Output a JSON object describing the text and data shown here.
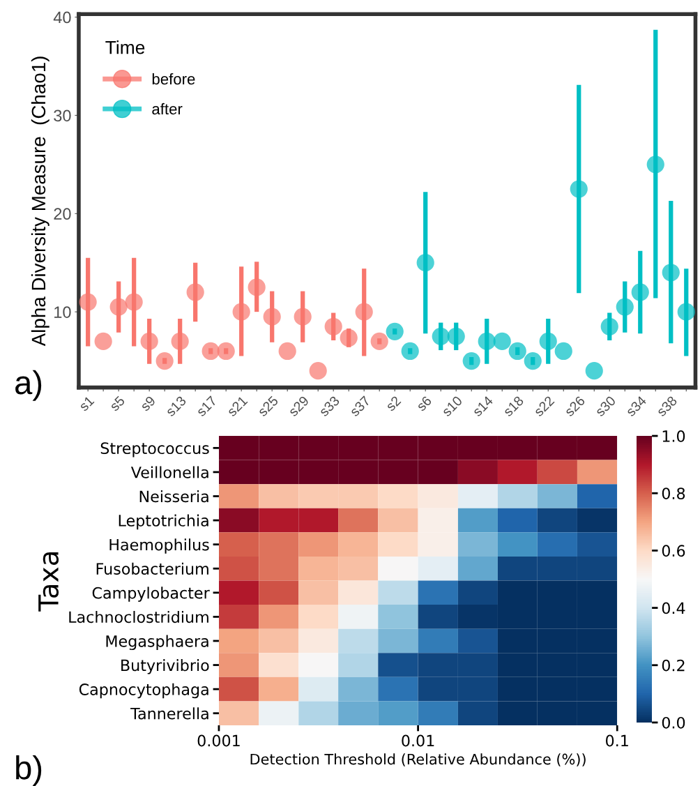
{
  "chart_data": [
    {
      "type": "scatter",
      "ylabel": "Alpha Diversity Measure  (Chao1)",
      "legend_title": "Time",
      "legend": "top left",
      "marker": "circle",
      "grid": false,
      "categories": [
        "s1",
        null,
        "s5",
        null,
        "s9",
        null,
        "s13",
        null,
        "s17",
        null,
        "s21",
        null,
        "s25",
        null,
        "s29",
        null,
        "s33",
        null,
        "s37",
        null,
        "s2",
        null,
        "s6",
        null,
        "s10",
        null,
        "s14",
        null,
        "s18",
        null,
        "s22",
        null,
        "s26",
        null,
        "s30",
        null,
        "s34",
        null,
        "s38",
        null
      ],
      "ylim": [
        2.3,
        40.3
      ],
      "yticks": [
        10,
        20,
        30,
        40
      ],
      "series": [
        {
          "name": "before",
          "color": "#f8766d",
          "values": [
            11,
            7,
            10.5,
            11,
            7,
            5,
            7,
            12,
            6,
            6,
            10,
            12.5,
            9.5,
            6,
            9.5,
            4,
            8.5,
            7.35,
            10,
            7,
            null,
            null,
            null,
            null,
            null,
            null,
            null,
            null,
            null,
            null,
            null,
            null,
            null,
            null,
            null,
            null,
            null,
            null,
            null,
            null
          ],
          "errors": [
            [
              6.5,
              15.5
            ],
            null,
            [
              7.9,
              13.1
            ],
            [
              6.5,
              15.5
            ],
            [
              4.7,
              9.3
            ],
            [
              4.7,
              5.3
            ],
            [
              4.7,
              9.3
            ],
            [
              9.0,
              15.0
            ],
            [
              5.7,
              6.3
            ],
            [
              5.7,
              6.3
            ],
            [
              5.5,
              14.6
            ],
            [
              10.0,
              15.1
            ],
            [
              6.9,
              12.1
            ],
            null,
            [
              6.9,
              12.1
            ],
            null,
            [
              7.1,
              9.9
            ],
            [
              6.4,
              8.3
            ],
            [
              5.5,
              14.4
            ],
            [
              6.7,
              7.3
            ],
            null,
            null,
            null,
            null,
            null,
            null,
            null,
            null,
            null,
            null,
            null,
            null,
            null,
            null,
            null,
            null,
            null,
            null,
            null,
            null
          ]
        },
        {
          "name": "after",
          "color": "#00bfc4",
          "values": [
            null,
            null,
            null,
            null,
            null,
            null,
            null,
            null,
            null,
            null,
            null,
            null,
            null,
            null,
            null,
            null,
            null,
            null,
            null,
            null,
            8,
            6,
            15,
            7.5,
            7.5,
            5,
            7,
            7,
            6,
            5,
            7,
            6,
            22.5,
            4,
            8.5,
            10.5,
            12,
            25,
            14,
            10
          ],
          "errors": [
            null,
            null,
            null,
            null,
            null,
            null,
            null,
            null,
            null,
            null,
            null,
            null,
            null,
            null,
            null,
            null,
            null,
            null,
            null,
            null,
            [
              7.7,
              8.3
            ],
            [
              5.7,
              6.3
            ],
            [
              7.8,
              22.2
            ],
            [
              6.1,
              8.9
            ],
            [
              6.1,
              8.9
            ],
            [
              4.6,
              5.4
            ],
            [
              4.7,
              9.3
            ],
            null,
            [
              5.6,
              6.4
            ],
            [
              4.6,
              5.4
            ],
            [
              4.7,
              9.3
            ],
            null,
            [
              11.9,
              33.1
            ],
            null,
            [
              7.1,
              9.9
            ],
            [
              7.9,
              13.1
            ],
            [
              7.8,
              16.2
            ],
            [
              11.4,
              38.7
            ],
            [
              6.8,
              21.3
            ],
            [
              5.5,
              14.4
            ]
          ]
        }
      ],
      "annotations": [
        "a)"
      ]
    },
    {
      "type": "heatmap",
      "xlabel": "Detection Threshold (Relative Abundance (%))",
      "ylabel": "Taxa",
      "log": "x",
      "x": [
        0.00126,
        0.002,
        0.00316,
        0.005,
        0.00794,
        0.0126,
        0.02,
        0.0316,
        0.05,
        0.0794
      ],
      "xlim": [
        0.001,
        0.1
      ],
      "xticks": [
        0.001,
        0.01,
        0.1
      ],
      "y_categories": [
        "Streptococcus",
        "Veillonella",
        "Neisseria",
        "Leptotrichia",
        "Haemophilus",
        "Fusobacterium",
        "Campylobacter",
        "Lachnoclostridium",
        "Megasphaera",
        "Butyrivibrio",
        "Capnocytophaga",
        "Tannerella"
      ],
      "cells": [
        [
          1,
          1,
          1,
          1,
          1,
          1,
          1,
          1,
          1,
          1
        ],
        [
          1,
          1,
          1,
          1,
          1,
          1,
          0.95,
          0.9,
          0.83,
          0.72
        ],
        [
          0.72,
          0.65,
          0.63,
          0.63,
          0.6,
          0.55,
          0.45,
          0.35,
          0.27,
          0.1
        ],
        [
          0.95,
          0.9,
          0.9,
          0.77,
          0.65,
          0.53,
          0.22,
          0.1,
          0.04,
          0.01
        ],
        [
          0.8,
          0.77,
          0.72,
          0.67,
          0.6,
          0.53,
          0.27,
          0.2,
          0.12,
          0.07
        ],
        [
          0.82,
          0.77,
          0.67,
          0.65,
          0.5,
          0.45,
          0.24,
          0.04,
          0.04,
          0.04
        ],
        [
          0.9,
          0.82,
          0.65,
          0.56,
          0.37,
          0.13,
          0.04,
          0,
          0,
          0
        ],
        [
          0.85,
          0.72,
          0.6,
          0.48,
          0.3,
          0.04,
          0.01,
          0,
          0,
          0
        ],
        [
          0.7,
          0.65,
          0.55,
          0.37,
          0.27,
          0.15,
          0.07,
          0,
          0,
          0
        ],
        [
          0.72,
          0.58,
          0.5,
          0.35,
          0.06,
          0.04,
          0.04,
          0,
          0,
          0
        ],
        [
          0.82,
          0.68,
          0.43,
          0.27,
          0.13,
          0.04,
          0.04,
          0,
          0,
          0
        ],
        [
          0.65,
          0.47,
          0.35,
          0.25,
          0.22,
          0.15,
          0.04,
          0,
          0,
          0
        ]
      ],
      "clim": [
        0,
        1
      ],
      "cticks": [
        {
          "value": 0,
          "label": "0.0"
        },
        {
          "value": 0.2,
          "label": "0.2"
        },
        {
          "value": 0.4,
          "label": "0.4"
        },
        {
          "value": 0.6,
          "label": "0.6"
        },
        {
          "value": 0.8,
          "label": "0.8"
        },
        {
          "value": 1,
          "label": "1.0"
        }
      ],
      "annotations": [
        "b)"
      ]
    }
  ]
}
